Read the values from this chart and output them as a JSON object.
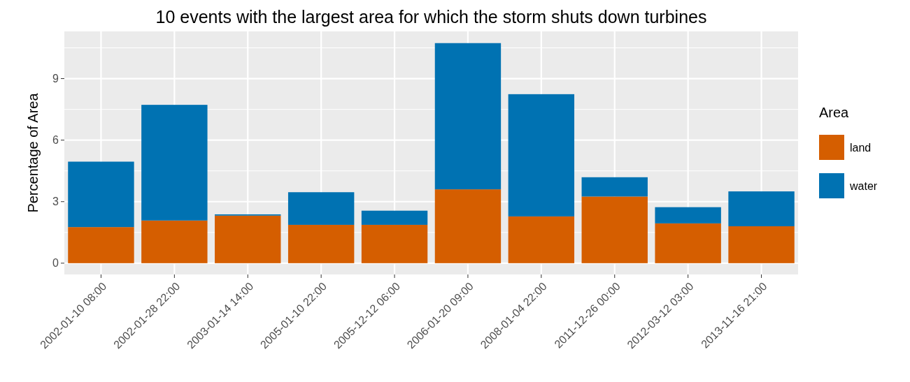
{
  "chart_data": {
    "type": "bar",
    "title": "10 events with the largest area for which the storm shuts down turbines",
    "ylabel": "Percentage of Area",
    "legend_title": "Area",
    "categories": [
      "2002-01-10 08:00",
      "2002-01-28 22:00",
      "2003-01-14 14:00",
      "2005-01-10 22:00",
      "2005-12-12 06:00",
      "2006-01-20 09:00",
      "2008-01-04 22:00",
      "2011-12-26 00:00",
      "2012-03-12 03:00",
      "2013-11-16 21:00"
    ],
    "series": [
      {
        "name": "land",
        "color": "#d55e00",
        "values": [
          1.76,
          2.08,
          2.32,
          1.87,
          1.87,
          3.6,
          2.28,
          3.25,
          1.94,
          1.8
        ]
      },
      {
        "name": "water",
        "color": "#0072b2",
        "values": [
          3.19,
          5.64,
          0.06,
          1.59,
          0.69,
          7.13,
          5.96,
          0.94,
          0.79,
          1.7
        ]
      }
    ],
    "stacked": true,
    "ylim": [
      -0.55,
      11.3
    ],
    "yticks": [
      0,
      3,
      6,
      9
    ],
    "grid": true,
    "legend": "right"
  }
}
